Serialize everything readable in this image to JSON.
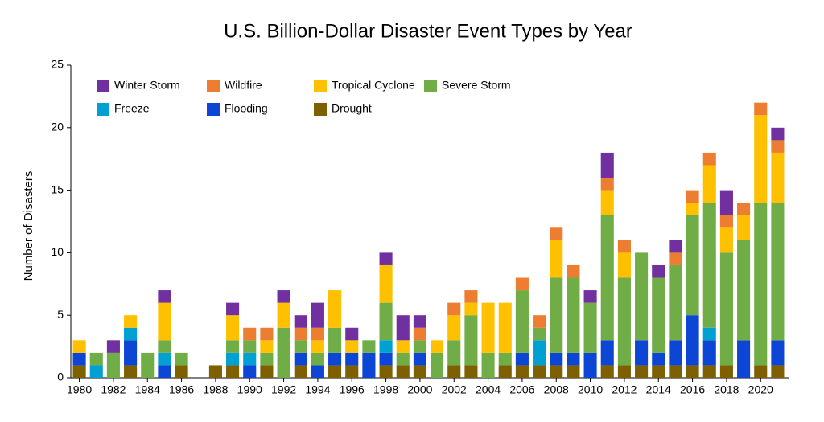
{
  "chart_data": {
    "type": "stacked-bar",
    "title": "U.S. Billion-Dollar Disaster Event Types by Year",
    "y_label": "Number of Disasters",
    "categories": [
      "1980",
      null,
      "1982",
      null,
      "1984",
      null,
      "1986",
      null,
      "1988",
      null,
      "1990",
      null,
      "1992",
      null,
      "1994",
      null,
      "1996",
      null,
      "1998",
      null,
      "2000",
      null,
      "2002",
      null,
      "2004",
      null,
      "2006",
      null,
      "2008",
      null,
      "2010",
      null,
      "2012",
      null,
      "2014",
      null,
      "2016",
      null,
      "2018",
      null,
      "2020",
      null
    ],
    "series": [
      {
        "name": "Winter Storm",
        "color": "#7030a0",
        "values": [
          0,
          0,
          1,
          0,
          0,
          1,
          0,
          0,
          0,
          1,
          0,
          0,
          1,
          1,
          2,
          0,
          1,
          0,
          1,
          2,
          1,
          0,
          0,
          0,
          0,
          0,
          0,
          0,
          0,
          0,
          1,
          2,
          0,
          0,
          1,
          1,
          0,
          0,
          2,
          0,
          0,
          1
        ]
      },
      {
        "name": "Wildfire",
        "color": "#ed7d31",
        "values": [
          0,
          0,
          0,
          0,
          0,
          0,
          0,
          0,
          0,
          0,
          1,
          1,
          0,
          1,
          1,
          0,
          0,
          0,
          0,
          0,
          1,
          0,
          1,
          1,
          0,
          0,
          1,
          1,
          1,
          1,
          0,
          1,
          1,
          0,
          0,
          1,
          1,
          1,
          1,
          1,
          1,
          1
        ]
      },
      {
        "name": "Tropical Cyclone",
        "color": "#ffc000",
        "values": [
          1,
          0,
          0,
          1,
          0,
          3,
          0,
          0,
          0,
          2,
          0,
          1,
          2,
          0,
          1,
          3,
          1,
          0,
          3,
          1,
          0,
          1,
          2,
          1,
          4,
          4,
          0,
          0,
          3,
          0,
          0,
          2,
          2,
          0,
          0,
          0,
          1,
          3,
          2,
          2,
          7,
          4
        ]
      },
      {
        "name": "Severe Storm",
        "color": "#70ad47",
        "values": [
          0,
          1,
          2,
          0,
          2,
          1,
          1,
          0,
          0,
          1,
          1,
          1,
          4,
          1,
          1,
          2,
          0,
          1,
          3,
          1,
          1,
          2,
          2,
          4,
          2,
          1,
          5,
          1,
          6,
          6,
          4,
          10,
          7,
          7,
          6,
          6,
          8,
          10,
          9,
          8,
          13,
          11
        ]
      },
      {
        "name": "Freeze",
        "color": "#00a0d2",
        "values": [
          0,
          1,
          0,
          1,
          0,
          1,
          0,
          0,
          0,
          1,
          1,
          0,
          0,
          0,
          0,
          0,
          0,
          0,
          1,
          0,
          0,
          0,
          0,
          0,
          0,
          0,
          0,
          2,
          0,
          0,
          0,
          0,
          0,
          0,
          0,
          0,
          0,
          1,
          0,
          0,
          0,
          0
        ]
      },
      {
        "name": "Flooding",
        "color": "#0d45d4",
        "values": [
          1,
          0,
          0,
          2,
          0,
          1,
          0,
          0,
          0,
          0,
          1,
          0,
          0,
          1,
          1,
          1,
          1,
          2,
          1,
          0,
          1,
          0,
          0,
          0,
          0,
          0,
          1,
          0,
          1,
          1,
          2,
          2,
          0,
          2,
          1,
          2,
          4,
          2,
          0,
          3,
          0,
          2
        ]
      },
      {
        "name": "Drought",
        "color": "#7f6000",
        "values": [
          1,
          0,
          0,
          1,
          0,
          0,
          1,
          0,
          1,
          1,
          0,
          1,
          0,
          1,
          0,
          1,
          1,
          0,
          1,
          1,
          1,
          0,
          1,
          1,
          0,
          1,
          1,
          1,
          1,
          1,
          0,
          1,
          1,
          1,
          1,
          1,
          1,
          1,
          1,
          0,
          1,
          1
        ]
      }
    ],
    "ylim": [
      0,
      25
    ],
    "yticks": [
      0,
      5,
      10,
      15,
      20,
      25
    ],
    "legend": "upper-left"
  }
}
